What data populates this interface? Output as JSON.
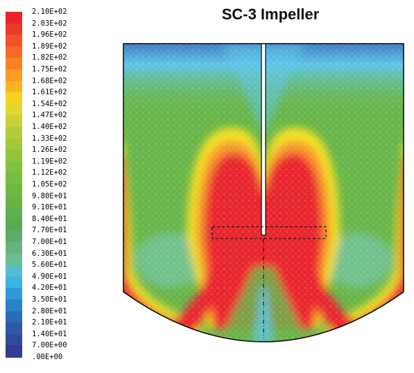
{
  "title": "SC-3 Impeller",
  "legend": {
    "labels": [
      "2.10E+02",
      "2.03E+02",
      "1.96E+02",
      "1.89E+02",
      "1.82E+02",
      "1.75E+02",
      "1.68E+02",
      "1.61E+02",
      "1.54E+02",
      "1.47E+02",
      "1.40E+02",
      "1.33E+02",
      "1.26E+02",
      "1.19E+02",
      "1.12E+02",
      "1.05E+02",
      "9.80E+01",
      "9.10E+01",
      "8.40E+01",
      "7.70E+01",
      "7.00E+01",
      "6.30E+01",
      "5.60E+01",
      "4.90E+01",
      "4.20E+01",
      "3.50E+01",
      "2.80E+01",
      "2.10E+01",
      "1.40E+01",
      "7.00E+00",
      ".00E+00"
    ],
    "colors": [
      "#e8242a",
      "#ec3a2a",
      "#f0522a",
      "#f46a28",
      "#f88226",
      "#fb9a24",
      "#fdb220",
      "#f9d21e",
      "#dfd830",
      "#c8d23a",
      "#b4cc3a",
      "#a2c83c",
      "#92c43e",
      "#84c040",
      "#78bc42",
      "#6eb844",
      "#66b446",
      "#5eb04a",
      "#58ac50",
      "#5aae6a",
      "#64b47e",
      "#6cbc98",
      "#56bed0",
      "#3cb4e6",
      "#2e9ad8",
      "#2a82c8",
      "#2a6cb8",
      "#2c5aa8",
      "#2e4c9c",
      "#303c90"
    ]
  },
  "diagram": {
    "colors": {
      "low": "#3468b8",
      "cyan": "#5cc4e8",
      "teal": "#74c4a8",
      "green": "#66b446",
      "yellow": "#f4e21c",
      "orange": "#f89628",
      "red": "#e8242a"
    }
  }
}
